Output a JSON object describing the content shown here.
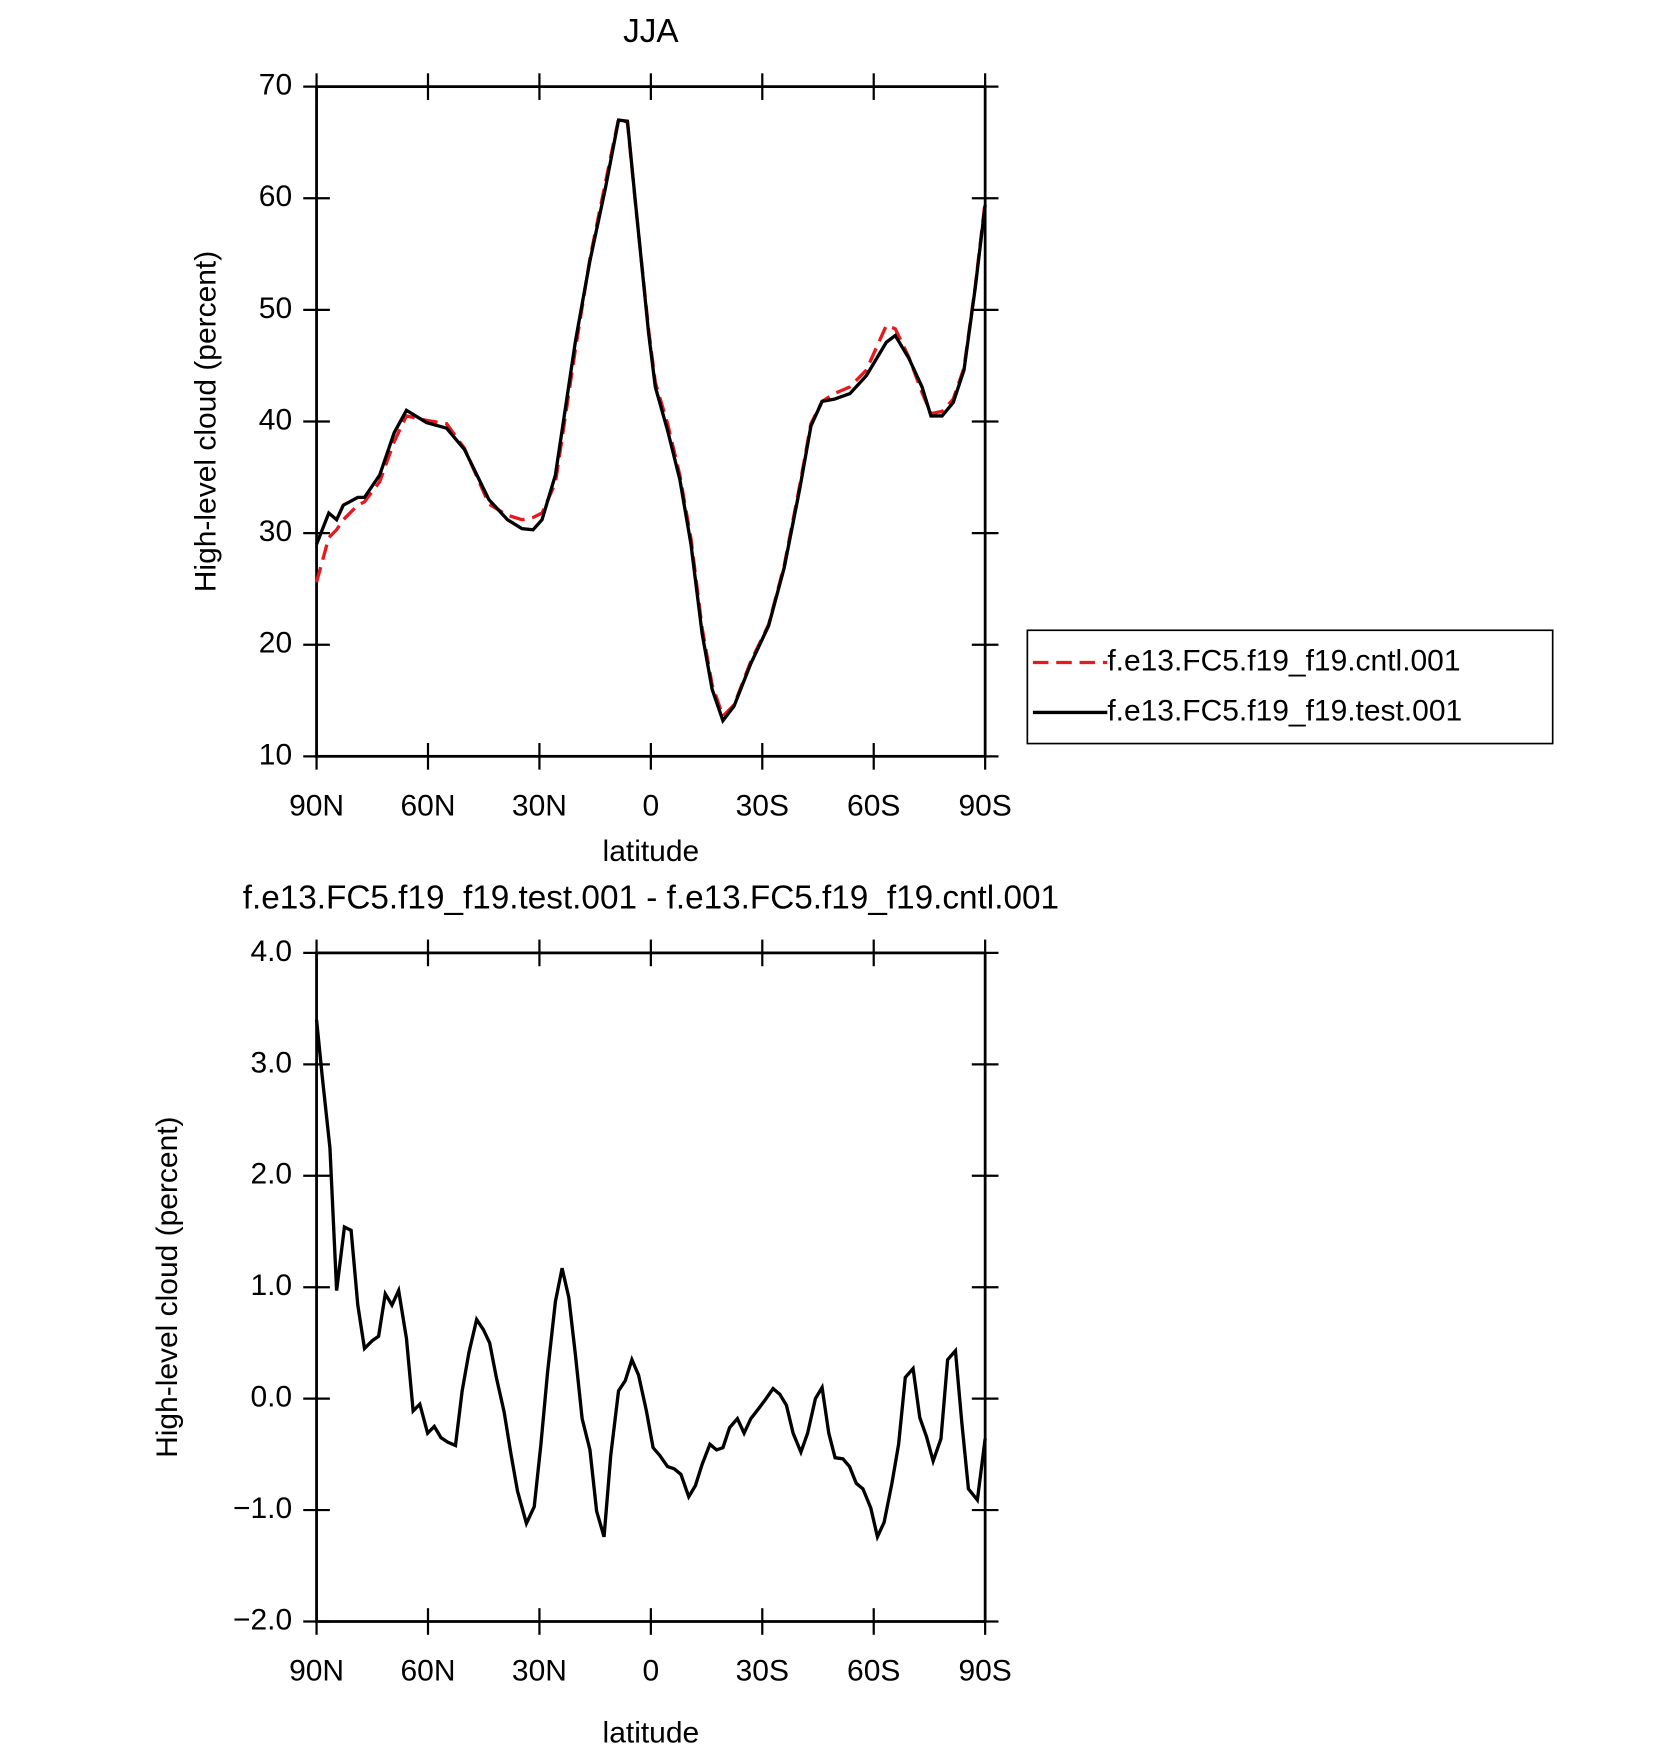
{
  "chart_data": [
    {
      "type": "line",
      "title": "JJA",
      "x_label": "latitude",
      "y_label": "High-level cloud (percent)",
      "xlim": [
        90,
        -90
      ],
      "ylim": [
        10,
        70
      ],
      "xticks": [
        {
          "value": 90,
          "label": "90N"
        },
        {
          "value": 60,
          "label": "60N"
        },
        {
          "value": 30,
          "label": "30N"
        },
        0,
        {
          "value": -30,
          "label": "30S"
        },
        {
          "value": -60,
          "label": "60S"
        },
        {
          "value": -90,
          "label": "90S"
        }
      ],
      "yticks": [
        10,
        20,
        30,
        40,
        50,
        60,
        70
      ],
      "x": [
        90,
        86.7,
        84.6,
        82.8,
        78.9,
        77.1,
        73,
        69.1,
        65.8,
        60.4,
        55,
        50.2,
        43.6,
        38.6,
        34.7,
        31.7,
        29.3,
        25.7,
        20.3,
        16.4,
        12.3,
        8.7,
        6.3,
        4.2,
        0.6,
        -1.2,
        -4.5,
        -7.8,
        -10.8,
        -13.8,
        -16.5,
        -19.4,
        -22.4,
        -26.9,
        -31.7,
        -35.9,
        -40.1,
        -43.1,
        -46.1,
        -49.4,
        -53.6,
        -58,
        -63.4,
        -65.8,
        -69.4,
        -73,
        -75.4,
        -78.4,
        -81.4,
        -84.3,
        -87.3,
        -90
      ],
      "legend": "right",
      "series": [
        {
          "name": "f.e13.FC5.f19_f19.cntl.001",
          "color": "#e8191c",
          "dash": true,
          "values": [
            25.6,
            29.6,
            30.3,
            31.2,
            32.5,
            32.8,
            34.6,
            38.2,
            40.5,
            40.1,
            39.8,
            37.6,
            32.6,
            31.6,
            31.2,
            31.4,
            31.8,
            34.5,
            46.5,
            54.6,
            61.3,
            67.1,
            66.8,
            59.7,
            48.2,
            43.5,
            39.8,
            35.2,
            29.5,
            21.5,
            16.4,
            13.6,
            14.6,
            18.5,
            21.8,
            27.1,
            34.3,
            39.8,
            41.8,
            42.5,
            43.1,
            44.6,
            48.6,
            48.3,
            45.8,
            42.6,
            40.7,
            40.9,
            42,
            44.8,
            52,
            59.7
          ]
        },
        {
          "name": "f.e13.FC5.f19_f19.test.001",
          "color": "#000000",
          "dash": false,
          "values": [
            29,
            31.8,
            31.2,
            32.5,
            33.2,
            33.2,
            35.2,
            39,
            41,
            39.9,
            39.4,
            37.5,
            33,
            31.2,
            30.4,
            30.3,
            31.2,
            35.2,
            47.2,
            54.4,
            60.8,
            67,
            66.9,
            59.8,
            47.9,
            43.1,
            39.2,
            34.8,
            29,
            21,
            16,
            13.2,
            14.5,
            18.3,
            21.7,
            26.9,
            34,
            39.6,
            41.8,
            42,
            42.5,
            44.1,
            47.1,
            47.7,
            45.7,
            43.1,
            40.5,
            40.5,
            41.7,
            44.6,
            51.9,
            59.4
          ]
        }
      ]
    },
    {
      "type": "line",
      "title": "f.e13.FC5.f19_f19.test.001 - f.e13.FC5.f19_f19.cntl.001",
      "x_label": "latitude",
      "y_label": "High-level cloud (percent)",
      "xlim": [
        90,
        -90
      ],
      "ylim": [
        -2,
        4
      ],
      "xticks": [
        {
          "value": 90,
          "label": "90N"
        },
        {
          "value": 60,
          "label": "60N"
        },
        {
          "value": 30,
          "label": "30N"
        },
        0,
        {
          "value": -30,
          "label": "30S"
        },
        {
          "value": -60,
          "label": "60S"
        },
        {
          "value": -90,
          "label": "90S"
        }
      ],
      "yticks": [
        {
          "value": -2,
          "label": "−2.0"
        },
        {
          "value": -1,
          "label": "−1.0"
        },
        {
          "value": 0,
          "label": "0.0"
        },
        {
          "value": 1,
          "label": "1.0"
        },
        {
          "value": 2,
          "label": "2.0"
        },
        {
          "value": 3,
          "label": "3.0"
        },
        {
          "value": 4,
          "label": "4.0"
        }
      ],
      "x": [
        90,
        88.5,
        86.4,
        84.6,
        82.5,
        80.7,
        78.9,
        77.1,
        75,
        73.3,
        71.5,
        69.7,
        67.9,
        65.8,
        64,
        62.2,
        60.1,
        58.3,
        56.5,
        54.7,
        52.6,
        50.8,
        49,
        46.9,
        45.1,
        43.4,
        41.6,
        39.5,
        37.7,
        35.9,
        33.5,
        31.4,
        29.6,
        27.8,
        25.7,
        23.9,
        22.1,
        20.3,
        18.5,
        16.4,
        14.6,
        12.6,
        10.8,
        8.7,
        6.9,
        5.1,
        3.3,
        1.2,
        -0.6,
        -2.4,
        -4.5,
        -6.3,
        -8.1,
        -10.2,
        -12,
        -13.8,
        -15.9,
        -17.7,
        -19.4,
        -21.2,
        -23.3,
        -25.1,
        -26.9,
        -29,
        -30.8,
        -32.9,
        -34.7,
        -36.5,
        -38.3,
        -40.4,
        -42.2,
        -44.3,
        -46.1,
        -47.9,
        -49.6,
        -51.7,
        -53.5,
        -55.3,
        -57.1,
        -59.2,
        -61,
        -62.8,
        -64.9,
        -66.7,
        -68.5,
        -70.6,
        -72.4,
        -74.2,
        -76,
        -78.1,
        -79.9,
        -82,
        -83.7,
        -85.5,
        -87.9,
        -90
      ],
      "series": [
        {
          "color": "#000000",
          "dash": false,
          "values": [
            3.4,
            2.9,
            2.25,
            0.97,
            1.54,
            1.51,
            0.84,
            0.45,
            0.52,
            0.56,
            0.94,
            0.84,
            0.97,
            0.54,
            -0.11,
            -0.05,
            -0.31,
            -0.25,
            -0.35,
            -0.39,
            -0.42,
            0.07,
            0.41,
            0.71,
            0.62,
            0.5,
            0.19,
            -0.12,
            -0.49,
            -0.83,
            -1.12,
            -0.97,
            -0.41,
            0.24,
            0.87,
            1.17,
            0.91,
            0.39,
            -0.18,
            -0.46,
            -1.01,
            -1.24,
            -0.51,
            0.07,
            0.16,
            0.35,
            0.21,
            -0.11,
            -0.44,
            -0.51,
            -0.61,
            -0.63,
            -0.68,
            -0.88,
            -0.78,
            -0.59,
            -0.41,
            -0.46,
            -0.44,
            -0.26,
            -0.18,
            -0.31,
            -0.18,
            -0.09,
            -0.01,
            0.09,
            0.04,
            -0.06,
            -0.31,
            -0.48,
            -0.31,
            0,
            0.1,
            -0.31,
            -0.53,
            -0.54,
            -0.61,
            -0.76,
            -0.81,
            -0.98,
            -1.24,
            -1.11,
            -0.76,
            -0.41,
            0.19,
            0.27,
            -0.17,
            -0.34,
            -0.56,
            -0.36,
            0.35,
            0.43,
            -0.21,
            -0.81,
            -0.91,
            -0.36
          ]
        }
      ]
    }
  ]
}
